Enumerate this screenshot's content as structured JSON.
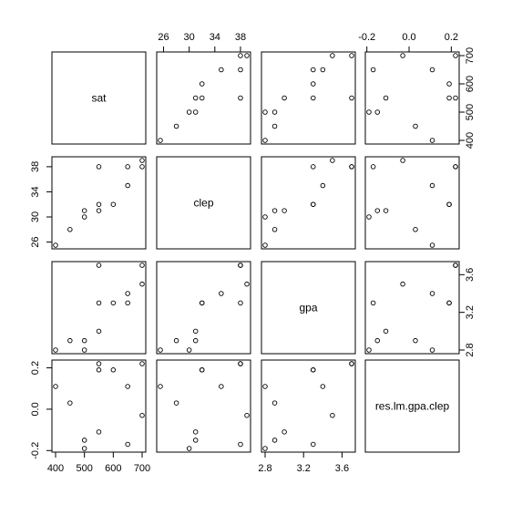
{
  "chart_data": {
    "type": "scatter",
    "title": "",
    "variables": [
      "sat",
      "clep",
      "gpa",
      "res.lm.gpa.clep"
    ],
    "observations": {
      "sat": [
        400,
        450,
        500,
        500,
        550,
        550,
        550,
        600,
        650,
        650,
        700,
        700
      ],
      "clep": [
        25.5,
        28,
        30,
        31,
        31,
        32,
        38,
        32,
        35,
        38,
        39,
        38
      ],
      "gpa": [
        2.8,
        2.9,
        2.8,
        2.9,
        3.0,
        3.3,
        3.7,
        3.3,
        3.4,
        3.3,
        3.5,
        3.7
      ],
      "res.lm.gpa.clep": [
        0.11,
        0.03,
        -0.19,
        -0.15,
        -0.11,
        0.19,
        0.22,
        0.19,
        0.11,
        -0.17,
        -0.03,
        0.22
      ]
    },
    "ranges": {
      "sat": [
        400,
        700
      ],
      "clep": [
        25.5,
        39
      ],
      "gpa": [
        2.8,
        3.7
      ],
      "res.lm.gpa.clep": [
        -0.19,
        0.22
      ]
    },
    "ticks": {
      "sat": [
        400,
        500,
        600,
        700
      ],
      "clep": [
        26,
        30,
        34,
        38
      ],
      "gpa": [
        2.8,
        3.2,
        3.6
      ],
      "res.lm.gpa.clep": [
        -0.2,
        0.0,
        0.2
      ]
    },
    "tick_labels": {
      "sat": [
        "400",
        "500",
        "600",
        "700"
      ],
      "clep": [
        "26",
        "30",
        "34",
        "38"
      ],
      "gpa": [
        "2.8",
        "3.2",
        "3.6"
      ],
      "res.lm.gpa.clep": [
        "-0.2",
        "0.0",
        "0.2"
      ]
    },
    "grid": false,
    "point_style": "open-circle"
  }
}
